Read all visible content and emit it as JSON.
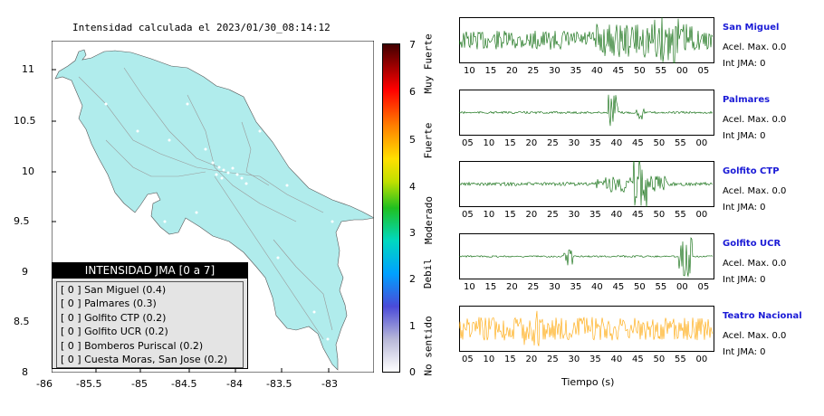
{
  "map": {
    "title": "Intensidad calculada el 2023/01/30_08:14:12",
    "x_ticks": [
      "-86",
      "-85.5",
      "-85",
      "-84.5",
      "-84",
      "-83.5",
      "-83"
    ],
    "y_ticks": [
      "11",
      "10.5",
      "10",
      "9.5",
      "9",
      "8.5",
      "8"
    ],
    "xlim": [
      -86,
      -82.55
    ],
    "ylim": [
      8,
      11.3
    ],
    "land_color": "#b0ecec"
  },
  "colorbar": {
    "ticks": [
      "7",
      "6",
      "5",
      "4",
      "3",
      "2",
      "1",
      "0"
    ],
    "side_labels": [
      "Muy Fuerte",
      "Fuerte",
      "Moderado",
      "Debil",
      "No sentido"
    ]
  },
  "legend": {
    "title": "INTENSIDAD JMA [0 a 7]",
    "items": [
      "[ 0 ] San Miguel (0.4)",
      "[ 0 ] Palmares (0.3)",
      "[ 0 ] Golfito CTP (0.2)",
      "[ 0 ] Golfito UCR (0.2)",
      "[ 0 ] Bomberos Puriscal (0.2)",
      "[ 0 ] Cuesta Moras, San Jose (0.2)"
    ]
  },
  "waveforms": [
    {
      "name": "San Miguel",
      "accel": "Acel. Max. 0.0",
      "int": "Int JMA: 0",
      "color": "#006400",
      "ticks": [
        "10",
        "15",
        "20",
        "25",
        "30",
        "35",
        "40",
        "45",
        "50",
        "55",
        "00",
        "05"
      ],
      "tick_offset": 10
    },
    {
      "name": "Palmares",
      "accel": "Acel. Max. 0.0",
      "int": "Int JMA: 0",
      "color": "#006400",
      "ticks": [
        "05",
        "10",
        "15",
        "20",
        "25",
        "30",
        "35",
        "40",
        "45",
        "50",
        "55",
        "00"
      ],
      "tick_offset": 8
    },
    {
      "name": "Golfito CTP",
      "accel": "Acel. Max. 0.0",
      "int": "Int JMA: 0",
      "color": "#006400",
      "ticks": [
        "05",
        "10",
        "15",
        "20",
        "25",
        "30",
        "35",
        "40",
        "45",
        "50",
        "55",
        "00"
      ],
      "tick_offset": 8
    },
    {
      "name": "Golfito UCR",
      "accel": "Acel. Max. 0.0",
      "int": "Int JMA: 0",
      "color": "#006400",
      "ticks": [
        "10",
        "15",
        "20",
        "25",
        "30",
        "35",
        "40",
        "45",
        "50",
        "55",
        "00",
        "05"
      ],
      "tick_offset": 10
    },
    {
      "name": "Teatro Nacional",
      "accel": "Acel. Max. 0.0",
      "int": "Int JMA: 0",
      "color": "#ffa500",
      "ticks": [
        "05",
        "10",
        "15",
        "20",
        "25",
        "30",
        "35",
        "40",
        "45",
        "50",
        "55",
        "00"
      ],
      "tick_offset": 8
    }
  ],
  "time_label": "Tiempo (s)"
}
